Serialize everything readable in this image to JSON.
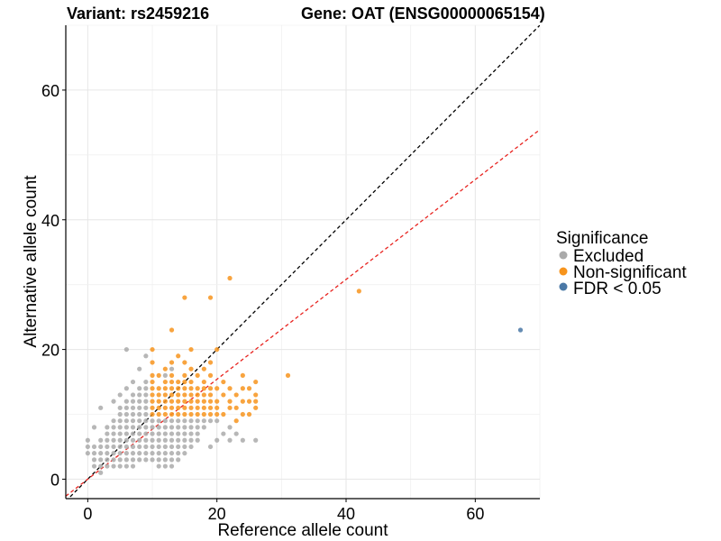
{
  "chart_data": {
    "type": "scatter",
    "title_left": "Variant: rs2459216",
    "title_right": "Gene: OAT (ENSG00000065154)",
    "xlabel": "Reference allele count",
    "ylabel": "Alternative allele count",
    "xlim": [
      -3.4,
      70
    ],
    "ylim": [
      -3,
      70
    ],
    "xticks": [
      0,
      20,
      40,
      60
    ],
    "yticks": [
      0,
      20,
      40,
      60
    ],
    "grid": true,
    "legend": {
      "title": "Significance",
      "position": "right",
      "entries": [
        {
          "label": "Excluded",
          "color": "#aaaaaa"
        },
        {
          "label": "Non-significant",
          "color": "#f7941d"
        },
        {
          "label": "FDR < 0.05",
          "color": "#4a78a6"
        }
      ]
    },
    "reference_lines": [
      {
        "name": "identity",
        "slope": 1.0,
        "intercept": 0,
        "color": "#000000",
        "dash": "dashed"
      },
      {
        "name": "fit",
        "slope": 0.77,
        "intercept": 0,
        "color": "#e8231f",
        "dash": "dashed"
      }
    ],
    "series": [
      {
        "name": "Excluded",
        "color": "#aaaaaa",
        "points": [
          [
            0,
            4
          ],
          [
            0,
            5
          ],
          [
            0,
            6
          ],
          [
            1,
            2
          ],
          [
            1,
            3
          ],
          [
            1,
            4
          ],
          [
            1,
            5
          ],
          [
            1,
            8
          ],
          [
            2,
            1
          ],
          [
            2,
            2
          ],
          [
            2,
            3
          ],
          [
            2,
            4
          ],
          [
            2,
            5
          ],
          [
            2,
            6
          ],
          [
            2,
            11
          ],
          [
            3,
            2
          ],
          [
            3,
            3
          ],
          [
            3,
            4
          ],
          [
            3,
            5
          ],
          [
            3,
            6
          ],
          [
            3,
            7
          ],
          [
            3,
            8
          ],
          [
            4,
            2
          ],
          [
            4,
            3
          ],
          [
            4,
            4
          ],
          [
            4,
            5
          ],
          [
            4,
            6
          ],
          [
            4,
            7
          ],
          [
            4,
            8
          ],
          [
            4,
            9
          ],
          [
            4,
            12
          ],
          [
            5,
            2
          ],
          [
            5,
            3
          ],
          [
            5,
            4
          ],
          [
            5,
            5
          ],
          [
            5,
            6
          ],
          [
            5,
            7
          ],
          [
            5,
            8
          ],
          [
            5,
            9
          ],
          [
            5,
            10
          ],
          [
            5,
            11
          ],
          [
            5,
            13
          ],
          [
            6,
            2
          ],
          [
            6,
            3
          ],
          [
            6,
            4
          ],
          [
            6,
            5
          ],
          [
            6,
            6
          ],
          [
            6,
            7
          ],
          [
            6,
            8
          ],
          [
            6,
            9
          ],
          [
            6,
            10
          ],
          [
            6,
            11
          ],
          [
            6,
            12
          ],
          [
            6,
            14
          ],
          [
            6,
            20
          ],
          [
            7,
            2
          ],
          [
            7,
            3
          ],
          [
            7,
            4
          ],
          [
            7,
            5
          ],
          [
            7,
            6
          ],
          [
            7,
            7
          ],
          [
            7,
            8
          ],
          [
            7,
            9
          ],
          [
            7,
            10
          ],
          [
            7,
            11
          ],
          [
            7,
            12
          ],
          [
            7,
            13
          ],
          [
            7,
            15
          ],
          [
            8,
            3
          ],
          [
            8,
            4
          ],
          [
            8,
            5
          ],
          [
            8,
            6
          ],
          [
            8,
            7
          ],
          [
            8,
            8
          ],
          [
            8,
            9
          ],
          [
            8,
            10
          ],
          [
            8,
            11
          ],
          [
            8,
            12
          ],
          [
            8,
            13
          ],
          [
            8,
            14
          ],
          [
            8,
            17
          ],
          [
            9,
            3
          ],
          [
            9,
            4
          ],
          [
            9,
            5
          ],
          [
            9,
            6
          ],
          [
            9,
            7
          ],
          [
            9,
            8
          ],
          [
            9,
            9
          ],
          [
            9,
            10
          ],
          [
            9,
            11
          ],
          [
            9,
            12
          ],
          [
            9,
            13
          ],
          [
            9,
            14
          ],
          [
            9,
            15
          ],
          [
            9,
            19
          ],
          [
            10,
            3
          ],
          [
            10,
            4
          ],
          [
            10,
            5
          ],
          [
            10,
            6
          ],
          [
            10,
            7
          ],
          [
            10,
            8
          ],
          [
            10,
            9
          ],
          [
            11,
            2
          ],
          [
            11,
            3
          ],
          [
            11,
            4
          ],
          [
            11,
            5
          ],
          [
            11,
            6
          ],
          [
            11,
            7
          ],
          [
            11,
            8
          ],
          [
            11,
            9
          ],
          [
            12,
            2
          ],
          [
            12,
            3
          ],
          [
            12,
            4
          ],
          [
            12,
            5
          ],
          [
            12,
            6
          ],
          [
            12,
            7
          ],
          [
            12,
            8
          ],
          [
            12,
            9
          ],
          [
            13,
            2
          ],
          [
            13,
            3
          ],
          [
            13,
            4
          ],
          [
            13,
            5
          ],
          [
            13,
            6
          ],
          [
            13,
            7
          ],
          [
            13,
            8
          ],
          [
            13,
            9
          ],
          [
            14,
            3
          ],
          [
            14,
            4
          ],
          [
            14,
            5
          ],
          [
            14,
            6
          ],
          [
            14,
            7
          ],
          [
            14,
            8
          ],
          [
            14,
            9
          ],
          [
            15,
            4
          ],
          [
            15,
            5
          ],
          [
            15,
            6
          ],
          [
            15,
            7
          ],
          [
            15,
            8
          ],
          [
            15,
            9
          ],
          [
            16,
            5
          ],
          [
            16,
            6
          ],
          [
            16,
            7
          ],
          [
            16,
            8
          ],
          [
            16,
            9
          ],
          [
            17,
            6
          ],
          [
            17,
            7
          ],
          [
            17,
            8
          ],
          [
            17,
            9
          ],
          [
            18,
            8
          ],
          [
            18,
            9
          ],
          [
            19,
            5
          ],
          [
            19,
            9
          ],
          [
            20,
            6
          ],
          [
            20,
            9
          ],
          [
            21,
            7
          ],
          [
            22,
            6
          ],
          [
            22,
            8
          ],
          [
            23,
            7
          ],
          [
            24,
            6
          ],
          [
            26,
            6
          ],
          [
            13,
            17
          ],
          [
            12,
            16
          ]
        ]
      },
      {
        "name": "Non-significant",
        "color": "#f7941d",
        "points": [
          [
            10,
            10
          ],
          [
            10,
            11
          ],
          [
            10,
            12
          ],
          [
            10,
            13
          ],
          [
            10,
            14
          ],
          [
            10,
            15
          ],
          [
            10,
            16
          ],
          [
            10,
            18
          ],
          [
            10,
            20
          ],
          [
            11,
            10
          ],
          [
            11,
            11
          ],
          [
            11,
            12
          ],
          [
            11,
            13
          ],
          [
            11,
            14
          ],
          [
            11,
            16
          ],
          [
            12,
            10
          ],
          [
            12,
            11
          ],
          [
            12,
            12
          ],
          [
            12,
            13
          ],
          [
            12,
            14
          ],
          [
            12,
            15
          ],
          [
            12,
            17
          ],
          [
            13,
            10
          ],
          [
            13,
            11
          ],
          [
            13,
            12
          ],
          [
            13,
            13
          ],
          [
            13,
            14
          ],
          [
            13,
            15
          ],
          [
            13,
            16
          ],
          [
            13,
            18
          ],
          [
            13,
            23
          ],
          [
            14,
            10
          ],
          [
            14,
            11
          ],
          [
            14,
            12
          ],
          [
            14,
            13
          ],
          [
            14,
            14
          ],
          [
            14,
            15
          ],
          [
            14,
            19
          ],
          [
            15,
            10
          ],
          [
            15,
            11
          ],
          [
            15,
            12
          ],
          [
            15,
            13
          ],
          [
            15,
            14
          ],
          [
            15,
            15
          ],
          [
            15,
            16
          ],
          [
            15,
            18
          ],
          [
            15,
            28
          ],
          [
            16,
            10
          ],
          [
            16,
            11
          ],
          [
            16,
            12
          ],
          [
            16,
            13
          ],
          [
            16,
            14
          ],
          [
            16,
            15
          ],
          [
            16,
            17
          ],
          [
            16,
            20
          ],
          [
            17,
            10
          ],
          [
            17,
            11
          ],
          [
            17,
            12
          ],
          [
            17,
            13
          ],
          [
            17,
            14
          ],
          [
            17,
            16
          ],
          [
            18,
            10
          ],
          [
            18,
            11
          ],
          [
            18,
            12
          ],
          [
            18,
            13
          ],
          [
            18,
            14
          ],
          [
            18,
            15
          ],
          [
            18,
            17
          ],
          [
            19,
            10
          ],
          [
            19,
            11
          ],
          [
            19,
            12
          ],
          [
            19,
            13
          ],
          [
            19,
            14
          ],
          [
            19,
            16
          ],
          [
            19,
            18
          ],
          [
            19,
            28
          ],
          [
            20,
            10
          ],
          [
            20,
            11
          ],
          [
            20,
            12
          ],
          [
            20,
            14
          ],
          [
            20,
            20
          ],
          [
            21,
            10
          ],
          [
            21,
            13
          ],
          [
            21,
            15
          ],
          [
            22,
            11
          ],
          [
            22,
            12
          ],
          [
            22,
            14
          ],
          [
            22,
            31
          ],
          [
            23,
            9
          ],
          [
            23,
            11
          ],
          [
            23,
            13
          ],
          [
            24,
            10
          ],
          [
            24,
            12
          ],
          [
            24,
            14
          ],
          [
            24,
            16
          ],
          [
            25,
            10
          ],
          [
            25,
            12
          ],
          [
            25,
            14
          ],
          [
            26,
            11
          ],
          [
            26,
            13
          ],
          [
            26,
            15
          ],
          [
            26,
            12
          ],
          [
            31,
            16
          ],
          [
            42,
            29
          ]
        ]
      },
      {
        "name": "FDR < 0.05",
        "color": "#4a78a6",
        "points": [
          [
            67,
            23
          ]
        ]
      }
    ]
  }
}
